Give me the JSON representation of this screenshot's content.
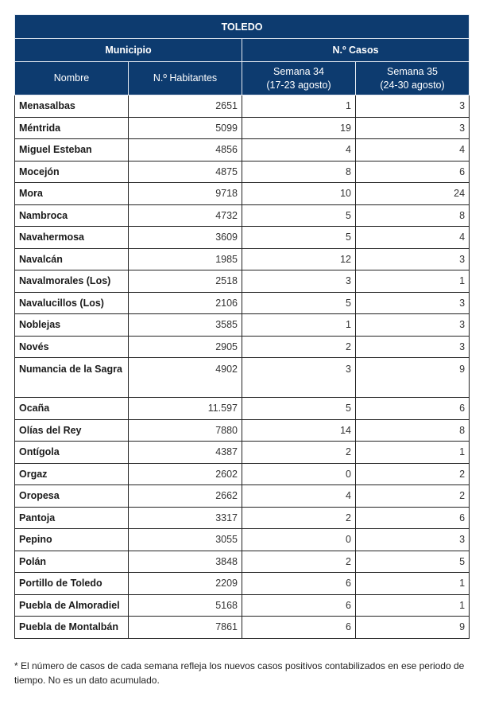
{
  "table": {
    "title": "TOLEDO",
    "group_municipio": "Municipio",
    "group_casos": "N.º Casos",
    "col_nombre": "Nombre",
    "col_habitantes": "N.º Habitantes",
    "col_semana34": "Semana 34",
    "col_semana34_range": "(17-23 agosto)",
    "col_semana35": "Semana 35",
    "col_semana35_range": "(24-30 agosto)",
    "rows": [
      {
        "nombre": "Menasalbas",
        "habitantes": "2651",
        "s34": "1",
        "s35": "3"
      },
      {
        "nombre": "Méntrida",
        "habitantes": "5099",
        "s34": "19",
        "s35": "3"
      },
      {
        "nombre": "Miguel Esteban",
        "habitantes": "4856",
        "s34": "4",
        "s35": "4"
      },
      {
        "nombre": "Mocejón",
        "habitantes": "4875",
        "s34": "8",
        "s35": "6"
      },
      {
        "nombre": "Mora",
        "habitantes": "9718",
        "s34": "10",
        "s35": "24"
      },
      {
        "nombre": "Nambroca",
        "habitantes": "4732",
        "s34": "5",
        "s35": "8"
      },
      {
        "nombre": "Navahermosa",
        "habitantes": "3609",
        "s34": "5",
        "s35": "4"
      },
      {
        "nombre": "Navalcán",
        "habitantes": "1985",
        "s34": "12",
        "s35": "3"
      },
      {
        "nombre": "Navalmorales (Los)",
        "habitantes": "2518",
        "s34": "3",
        "s35": "1"
      },
      {
        "nombre": "Navalucillos (Los)",
        "habitantes": "2106",
        "s34": "5",
        "s35": "3"
      },
      {
        "nombre": "Noblejas",
        "habitantes": "3585",
        "s34": "1",
        "s35": "3"
      },
      {
        "nombre": "Novés",
        "habitantes": "2905",
        "s34": "2",
        "s35": "3"
      },
      {
        "nombre": "Numancia de la Sagra",
        "habitantes": "4902",
        "s34": "3",
        "s35": "9"
      },
      {
        "nombre": "Ocaña",
        "habitantes": "11.597",
        "s34": "5",
        "s35": "6"
      },
      {
        "nombre": "Olías del Rey",
        "habitantes": "7880",
        "s34": "14",
        "s35": "8"
      },
      {
        "nombre": "Ontígola",
        "habitantes": "4387",
        "s34": "2",
        "s35": "1"
      },
      {
        "nombre": "Orgaz",
        "habitantes": "2602",
        "s34": "0",
        "s35": "2"
      },
      {
        "nombre": "Oropesa",
        "habitantes": "2662",
        "s34": "4",
        "s35": "2"
      },
      {
        "nombre": "Pantoja",
        "habitantes": "3317",
        "s34": "2",
        "s35": "6"
      },
      {
        "nombre": "Pepino",
        "habitantes": "3055",
        "s34": "0",
        "s35": "3"
      },
      {
        "nombre": "Polán",
        "habitantes": "3848",
        "s34": "2",
        "s35": "5"
      },
      {
        "nombre": "Portillo de Toledo",
        "habitantes": "2209",
        "s34": "6",
        "s35": "1"
      },
      {
        "nombre": "Puebla de Almoradiel",
        "habitantes": "5168",
        "s34": "6",
        "s35": "1"
      },
      {
        "nombre": "Puebla de Montalbán",
        "habitantes": "7861",
        "s34": "6",
        "s35": "9"
      }
    ]
  },
  "footnote": "* El número de casos de cada semana refleja los nuevos casos positivos contabilizados en ese periodo de tiempo. No es un dato acumulado.",
  "colors": {
    "header_bg": "#0d3b6f",
    "header_text": "#ffffff"
  }
}
